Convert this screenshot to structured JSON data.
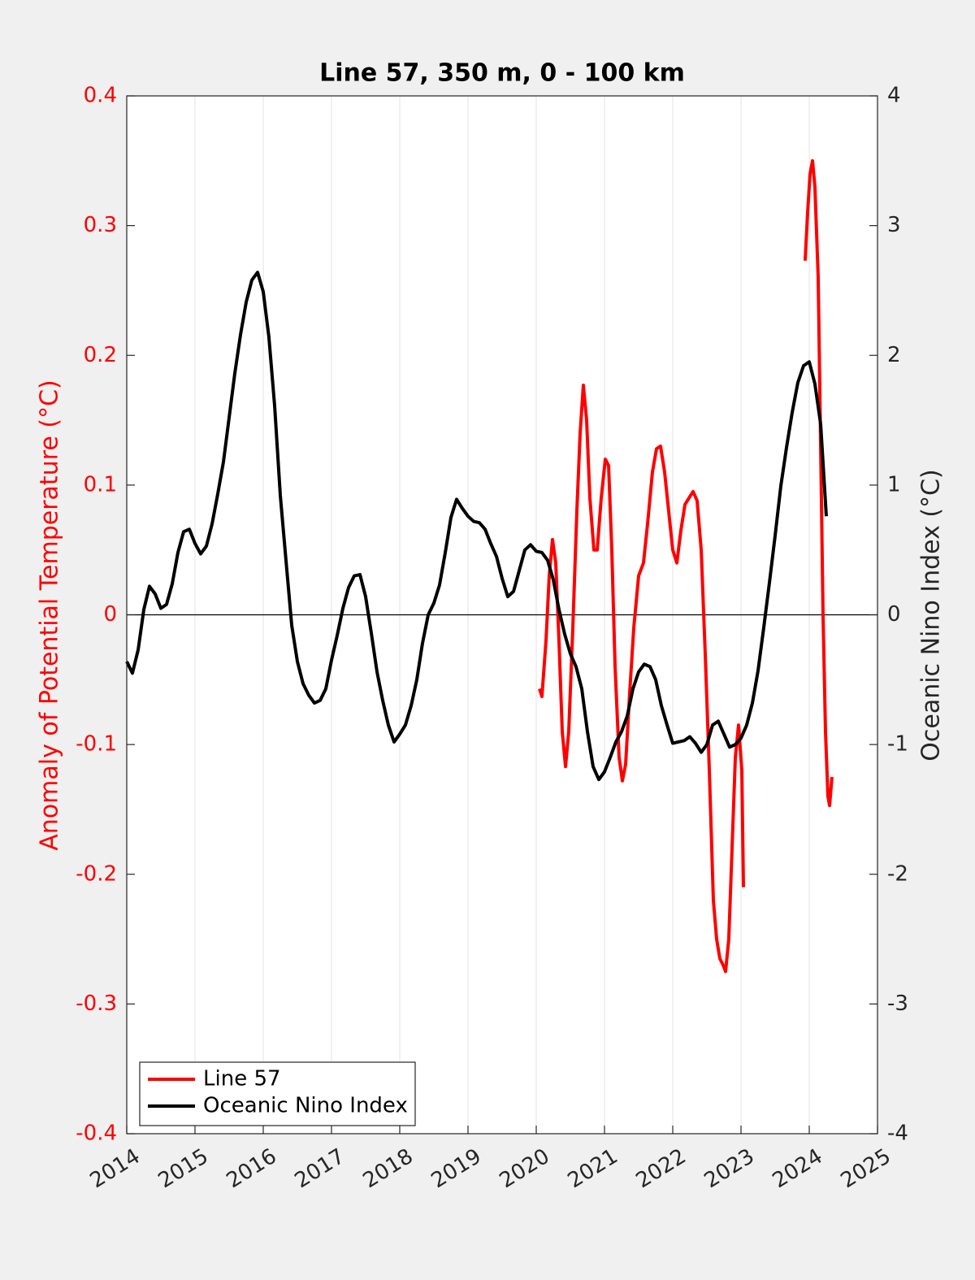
{
  "chart_data": {
    "type": "line",
    "title": "Line 57, 350 m, 0 - 100 km",
    "ylabel": "Anomaly of Potential Temperature (°C)",
    "y2label": "Oceanic Nino Index (°C)",
    "xlim": [
      2014,
      2025
    ],
    "xticks": [
      2014,
      2015,
      2016,
      2017,
      2018,
      2019,
      2020,
      2021,
      2022,
      2023,
      2024,
      2025
    ],
    "ylim": [
      -0.4,
      0.4
    ],
    "yticks": [
      -0.4,
      -0.3,
      -0.2,
      -0.1,
      0,
      0.1,
      0.2,
      0.3,
      0.4
    ],
    "y2lim": [
      -4,
      4
    ],
    "y2ticks": [
      -4,
      -3,
      -2,
      -1,
      0,
      1,
      2,
      3,
      4
    ],
    "grid": true,
    "legend": "lower left",
    "series": [
      {
        "name": "Line 57",
        "color": "#ff0000",
        "axis": "y",
        "x": [
          2020.048,
          2020.083,
          2020.143,
          2020.19,
          2020.238,
          2020.286,
          2020.333,
          2020.381,
          2020.429,
          2020.476,
          2020.536,
          2020.595,
          2020.643,
          2020.69,
          2020.738,
          2020.786,
          2020.845,
          2020.893,
          2020.952,
          2021.012,
          2021.06,
          2021.107,
          2021.155,
          2021.214,
          2021.262,
          2021.31,
          2021.369,
          2021.429,
          2021.5,
          2021.571,
          2021.631,
          2021.702,
          2021.762,
          2021.821,
          2021.881,
          2021.94,
          2022.0,
          2022.06,
          2022.119,
          2022.179,
          2022.238,
          2022.298,
          2022.357,
          2022.417,
          2022.476,
          2022.536,
          2022.595,
          2022.643,
          2022.69,
          2022.738,
          2022.774,
          2022.821,
          2022.869,
          2022.917,
          2022.964,
          2023.012,
          2023.036,
          2023.5,
          2023.94,
          2023.976,
          2024.012,
          2024.048,
          2024.083,
          2024.131,
          2024.167,
          2024.202,
          2024.238,
          2024.274,
          2024.298,
          2024.333
        ],
        "values": [
          -0.057,
          -0.063,
          -0.02,
          0.03,
          0.058,
          0.04,
          -0.02,
          -0.09,
          -0.117,
          -0.09,
          -0.01,
          0.08,
          0.14,
          0.177,
          0.15,
          0.09,
          0.05,
          0.05,
          0.09,
          0.12,
          0.115,
          0.05,
          -0.04,
          -0.11,
          -0.128,
          -0.115,
          -0.06,
          -0.01,
          0.03,
          0.04,
          0.07,
          0.11,
          0.128,
          0.13,
          0.11,
          0.08,
          0.05,
          0.04,
          0.065,
          0.085,
          0.09,
          0.095,
          0.088,
          0.05,
          -0.03,
          -0.12,
          -0.22,
          -0.25,
          -0.265,
          -0.27,
          -0.275,
          -0.25,
          -0.18,
          -0.11,
          -0.085,
          -0.12,
          -0.21,
          null,
          0.273,
          0.31,
          0.34,
          0.35,
          0.33,
          0.26,
          0.13,
          0.0,
          -0.09,
          -0.14,
          -0.147,
          -0.125
        ]
      },
      {
        "name": "Oceanic Nino Index",
        "color": "#000000",
        "axis": "y2",
        "x": [
          2014,
          2014.083,
          2014.167,
          2014.25,
          2014.333,
          2014.417,
          2014.5,
          2014.583,
          2014.667,
          2014.75,
          2014.833,
          2014.917,
          2015,
          2015.083,
          2015.167,
          2015.25,
          2015.333,
          2015.417,
          2015.5,
          2015.583,
          2015.667,
          2015.75,
          2015.833,
          2015.917,
          2016,
          2016.083,
          2016.167,
          2016.25,
          2016.333,
          2016.417,
          2016.5,
          2016.583,
          2016.667,
          2016.75,
          2016.833,
          2016.917,
          2017,
          2017.083,
          2017.167,
          2017.25,
          2017.333,
          2017.417,
          2017.5,
          2017.583,
          2017.667,
          2017.75,
          2017.833,
          2017.917,
          2018,
          2018.083,
          2018.167,
          2018.25,
          2018.333,
          2018.417,
          2018.5,
          2018.583,
          2018.667,
          2018.75,
          2018.833,
          2018.917,
          2019,
          2019.083,
          2019.167,
          2019.25,
          2019.333,
          2019.417,
          2019.5,
          2019.583,
          2019.667,
          2019.75,
          2019.833,
          2019.917,
          2020,
          2020.083,
          2020.167,
          2020.25,
          2020.333,
          2020.417,
          2020.5,
          2020.583,
          2020.667,
          2020.75,
          2020.833,
          2020.917,
          2021,
          2021.083,
          2021.167,
          2021.25,
          2021.333,
          2021.417,
          2021.5,
          2021.583,
          2021.667,
          2021.75,
          2021.833,
          2021.917,
          2022,
          2022.083,
          2022.167,
          2022.25,
          2022.333,
          2022.417,
          2022.5,
          2022.583,
          2022.667,
          2022.75,
          2022.833,
          2022.917,
          2023,
          2023.083,
          2023.167,
          2023.25,
          2023.333,
          2023.417,
          2023.5,
          2023.583,
          2023.667,
          2023.75,
          2023.833,
          2023.917,
          2024,
          2024.083,
          2024.167,
          2024.25
        ],
        "values": [
          -0.36,
          -0.45,
          -0.27,
          0.04,
          0.22,
          0.16,
          0.05,
          0.08,
          0.24,
          0.48,
          0.64,
          0.66,
          0.55,
          0.47,
          0.53,
          0.7,
          0.93,
          1.18,
          1.52,
          1.86,
          2.16,
          2.41,
          2.58,
          2.64,
          2.49,
          2.14,
          1.61,
          0.92,
          0.42,
          -0.08,
          -0.36,
          -0.53,
          -0.62,
          -0.68,
          -0.66,
          -0.57,
          -0.35,
          -0.16,
          0.05,
          0.21,
          0.3,
          0.31,
          0.14,
          -0.14,
          -0.44,
          -0.66,
          -0.85,
          -0.98,
          -0.92,
          -0.85,
          -0.7,
          -0.5,
          -0.22,
          0.0,
          0.09,
          0.23,
          0.48,
          0.75,
          0.89,
          0.82,
          0.76,
          0.72,
          0.71,
          0.66,
          0.55,
          0.45,
          0.28,
          0.14,
          0.18,
          0.34,
          0.5,
          0.54,
          0.49,
          0.48,
          0.42,
          0.27,
          0.04,
          -0.15,
          -0.3,
          -0.4,
          -0.57,
          -0.9,
          -1.17,
          -1.27,
          -1.21,
          -1.1,
          -0.98,
          -0.9,
          -0.78,
          -0.57,
          -0.44,
          -0.38,
          -0.4,
          -0.5,
          -0.7,
          -0.85,
          -0.99,
          -0.98,
          -0.97,
          -0.94,
          -0.99,
          -1.06,
          -1.0,
          -0.85,
          -0.82,
          -0.92,
          -1.02,
          -1.0,
          -0.95,
          -0.85,
          -0.68,
          -0.43,
          -0.1,
          0.25,
          0.61,
          0.99,
          1.29,
          1.56,
          1.79,
          1.92,
          1.95,
          1.78,
          1.47,
          0.76
        ]
      }
    ]
  }
}
